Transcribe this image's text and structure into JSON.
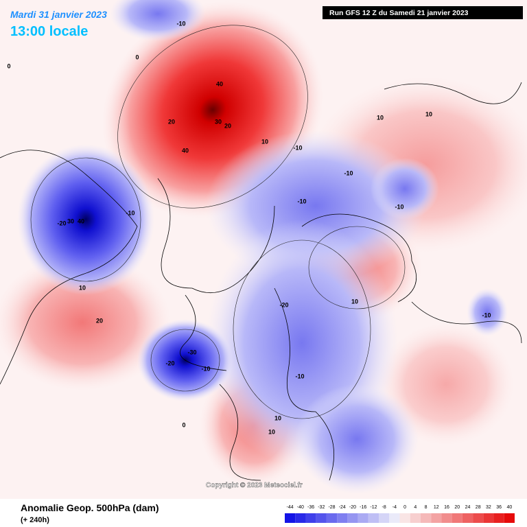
{
  "header": {
    "date": "Mardi 31 janvier 2023",
    "time": "13:00 locale",
    "run": "Run GFS 12 Z du Samedi 21 janvier 2023"
  },
  "footer": {
    "title": "Anomalie Geop. 500hPa (dam)",
    "lead": "(+ 240h)",
    "copyright": "Copyright © 2023 Meteociel.fr"
  },
  "colorbar": {
    "ticks": [
      -44,
      -40,
      -36,
      -32,
      -28,
      -24,
      -20,
      -16,
      -12,
      -8,
      -4,
      0,
      4,
      8,
      12,
      16,
      20,
      24,
      28,
      32,
      36,
      40
    ]
  },
  "contour_labels": [
    -10,
    0,
    0,
    40,
    20,
    30,
    20,
    10,
    40,
    -10,
    -10,
    -10,
    -10,
    10,
    10,
    -10,
    -20,
    30,
    40,
    10,
    20,
    10,
    -20,
    -10,
    -30,
    -20,
    -10,
    -10,
    10,
    10,
    0
  ]
}
